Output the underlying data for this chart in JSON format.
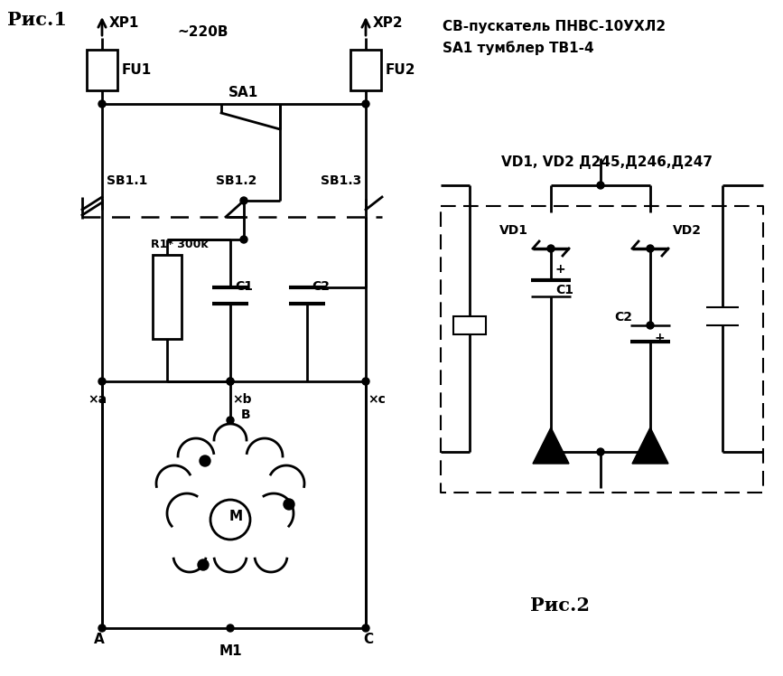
{
  "background_color": "#ffffff",
  "fig_label1": "Рис.1",
  "fig_label2": "Рис.2",
  "text_220": "~220В",
  "text_info1": "СВ-пускатель ПНВС-10УХЛ2",
  "text_info2": "SA1 тумблер ТВ1-4",
  "text_vd": "VD1, VD2 Д245,Д246,Д247",
  "text_xp1": "XP1",
  "text_xp2": "XP2",
  "text_fu1": "FU1",
  "text_fu2": "FU2",
  "text_sa1": "SA1",
  "text_sb11": "SB1.1",
  "text_sb12": "SB1.2",
  "text_sb13": "SB1.3",
  "text_r1": "R1* 300k",
  "text_c1": "C1",
  "text_c2": "C2",
  "text_a_label": "A",
  "text_b_label": "B",
  "text_c_label": "C",
  "text_m": "M",
  "text_m1": "M1",
  "text_xa": "×a",
  "text_xb": "×b",
  "text_xc": "×c",
  "text_vd1": "VD1",
  "text_vd2": "VD2",
  "text_c1b": "C1",
  "text_c2b": "C2",
  "text_plus": "+"
}
